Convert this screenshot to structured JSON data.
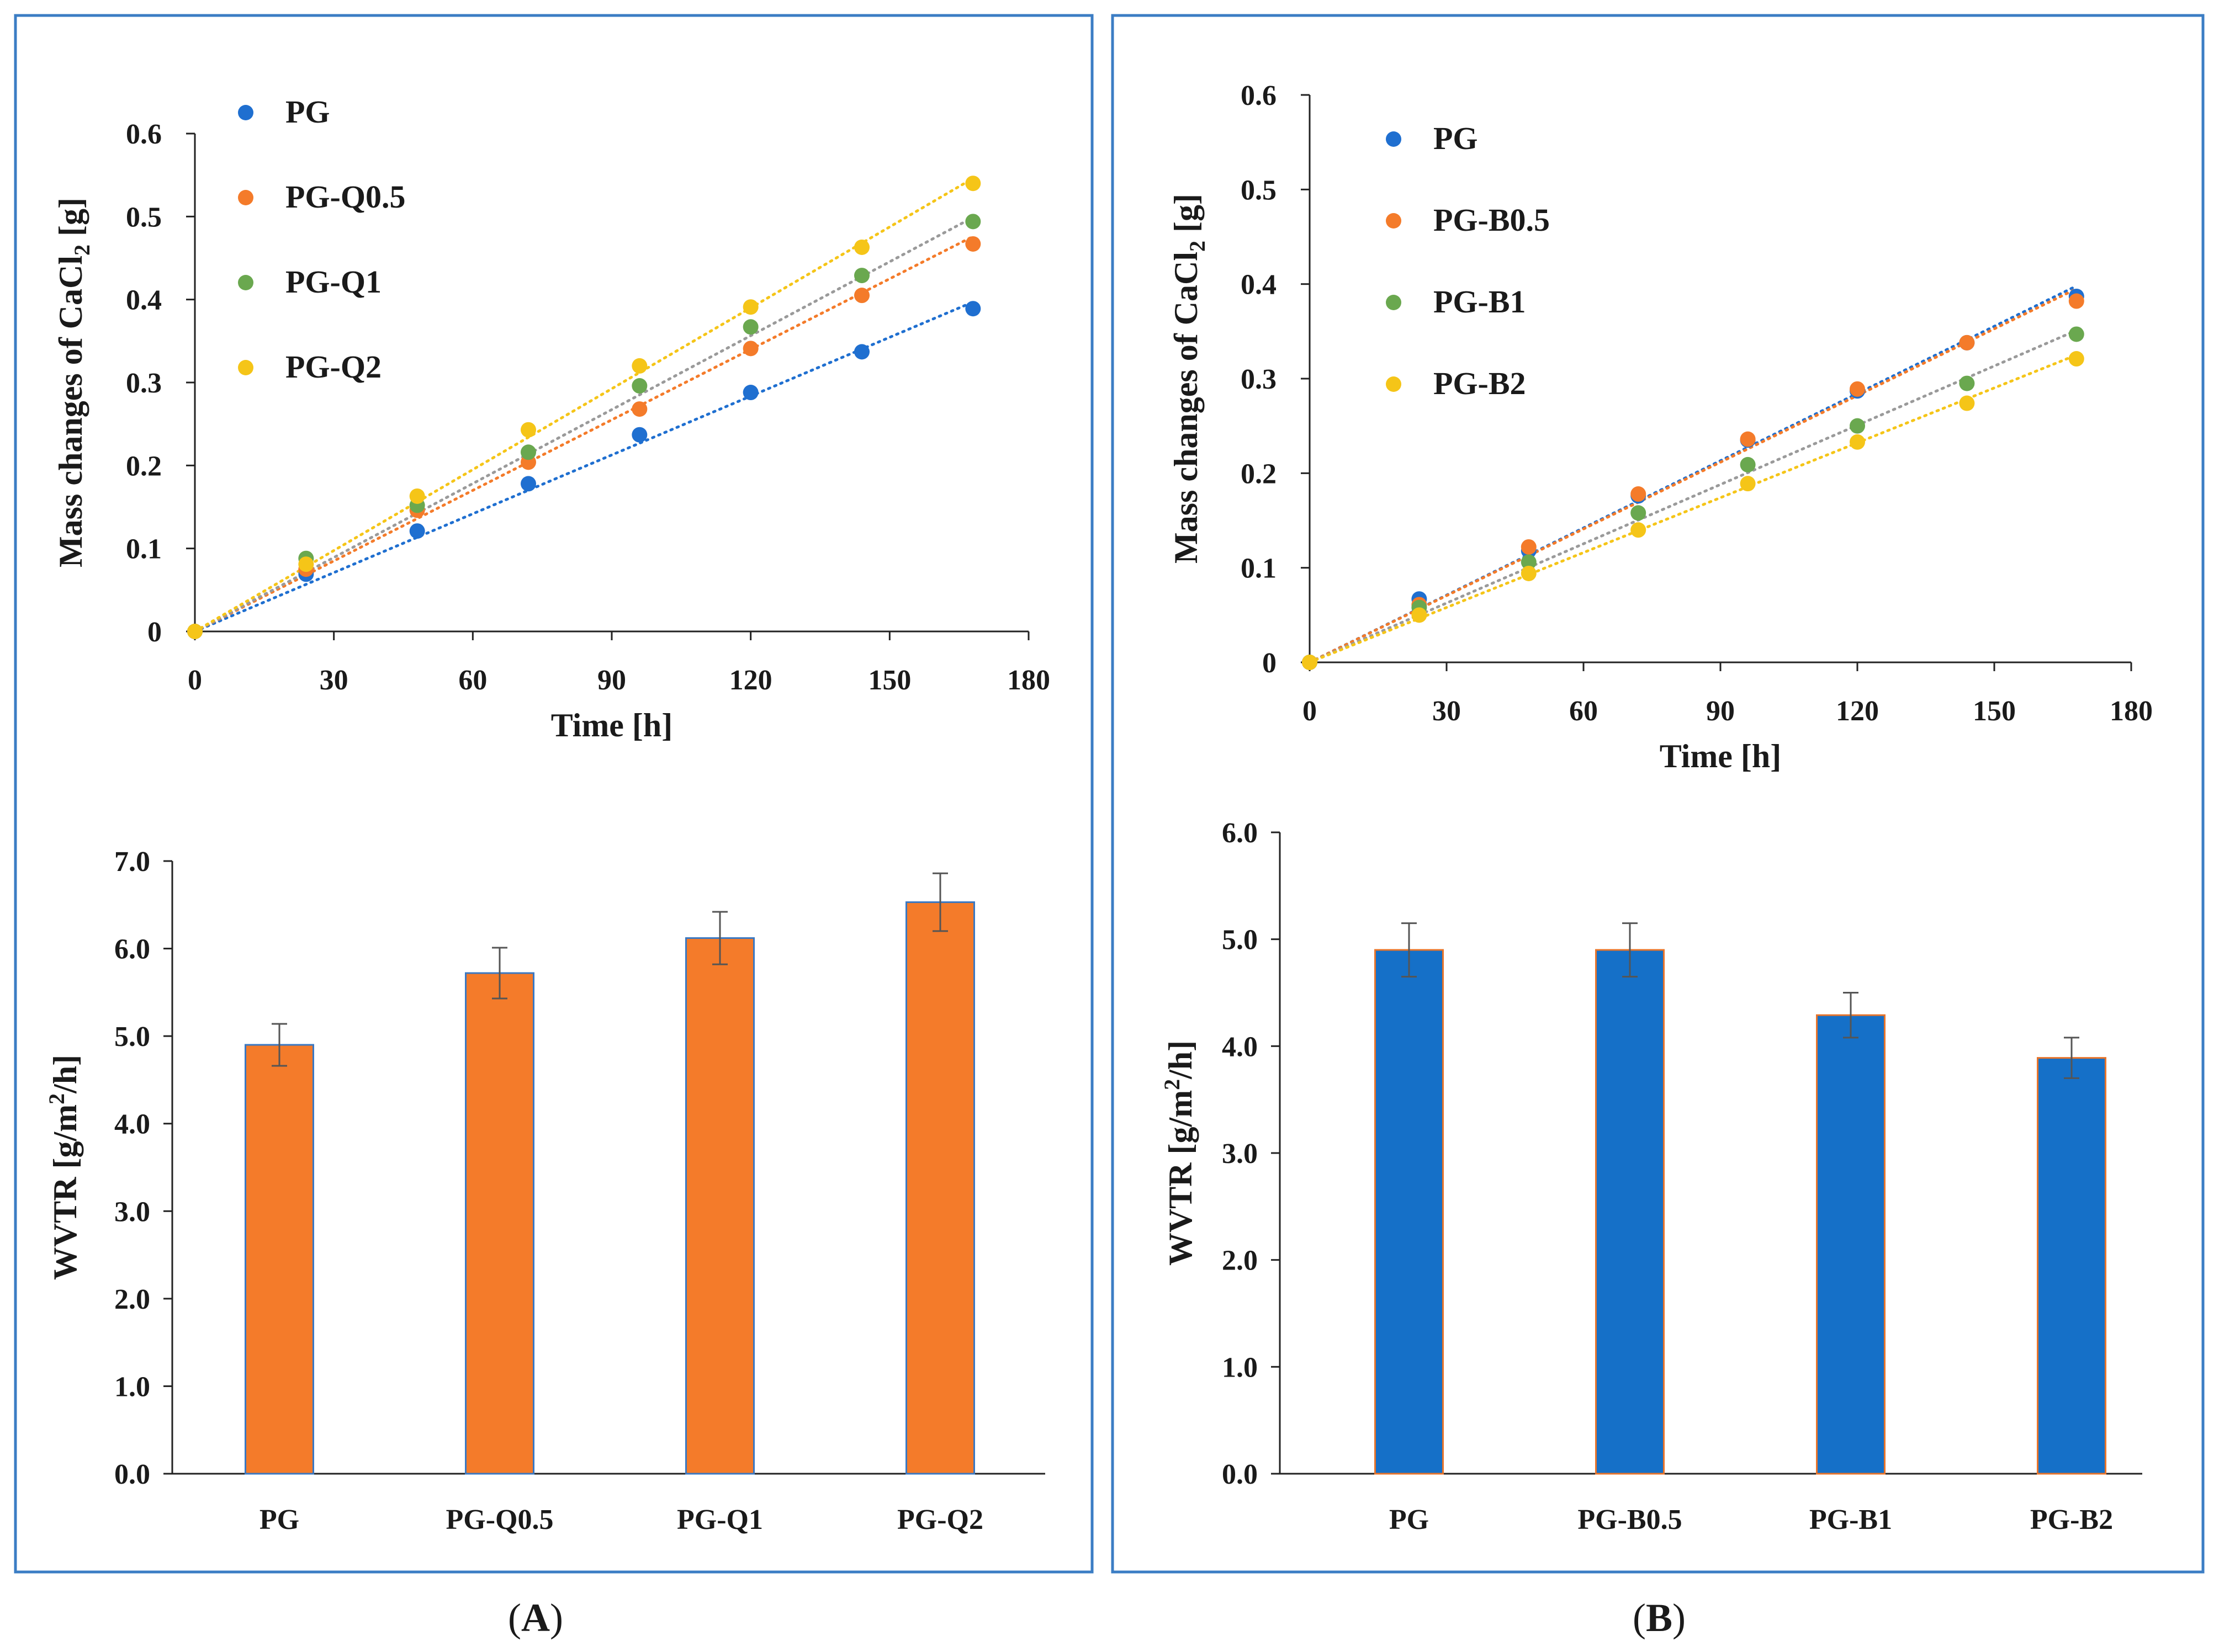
{
  "panels": [
    {
      "label": "A"
    },
    {
      "label": "B"
    }
  ],
  "chart_data": [
    {
      "id": "A-line",
      "type": "scatter",
      "panel": "A",
      "title": "",
      "xlabel": "Time [h]",
      "ylabel": "Mass changes of CaCl₂ [g]",
      "ylabel_main": "Mass changes of CaCl",
      "ylabel_sub": "2",
      "ylabel_tail": " [g]",
      "xlim": [
        0,
        180
      ],
      "ylim": [
        0,
        0.6
      ],
      "xticks": [
        "0",
        "30",
        "60",
        "90",
        "120",
        "150",
        "180"
      ],
      "yticks": [
        "0",
        "0.1",
        "0.2",
        "0.3",
        "0.4",
        "0.5",
        "0.6"
      ],
      "trendline": "linear, dotted",
      "legend_position": "top-left",
      "x": [
        0,
        24,
        48,
        72,
        96,
        120,
        144,
        168
      ],
      "series": [
        {
          "name": "PG",
          "color": "#1f6fd0",
          "values": [
            0,
            0.069,
            0.121,
            0.178,
            0.237,
            0.288,
            0.337,
            0.389
          ],
          "fit_end": 0.397
        },
        {
          "name": "PG-Q0.5",
          "color": "#f47b2a",
          "values": [
            0,
            0.075,
            0.146,
            0.204,
            0.268,
            0.341,
            0.405,
            0.467
          ],
          "fit_end": 0.476
        },
        {
          "name": "PG-Q1",
          "color": "#6aa84f",
          "values": [
            0,
            0.088,
            0.152,
            0.216,
            0.296,
            0.367,
            0.429,
            0.494
          ],
          "fit_end": 0.499
        },
        {
          "name": "PG-Q2",
          "color": "#f5c518",
          "values": [
            0,
            0.081,
            0.163,
            0.243,
            0.32,
            0.391,
            0.463,
            0.54
          ],
          "fit_end": 0.546
        }
      ]
    },
    {
      "id": "A-bar",
      "type": "bar",
      "panel": "A",
      "title": "",
      "xlabel": "",
      "ylabel": "WVTR [g/m²/h]",
      "ylabel_main": "WVTR [g/m",
      "ylabel_sup": "2",
      "ylabel_tail": "/h]",
      "ylim": [
        0,
        7
      ],
      "yticks": [
        "0.0",
        "1.0",
        "2.0",
        "3.0",
        "4.0",
        "5.0",
        "6.0",
        "7.0"
      ],
      "bar_color": "#f47b2a",
      "bar_edge": "#3a78c2",
      "categories": [
        "PG",
        "PG-Q0.5",
        "PG-Q1",
        "PG-Q2"
      ],
      "values": [
        4.9,
        5.72,
        6.12,
        6.53
      ],
      "errors": [
        0.24,
        0.29,
        0.3,
        0.33
      ]
    },
    {
      "id": "B-line",
      "type": "scatter",
      "panel": "B",
      "title": "",
      "xlabel": "Time [h]",
      "ylabel": "Mass changes of CaCl₂ [g]",
      "ylabel_main": "Mass changes of CaCl",
      "ylabel_sub": "2",
      "ylabel_tail": " [g]",
      "xlim": [
        0,
        180
      ],
      "ylim": [
        0,
        0.6
      ],
      "xticks": [
        "0",
        "30",
        "60",
        "90",
        "120",
        "150",
        "180"
      ],
      "yticks": [
        "0",
        "0.1",
        "0.2",
        "0.3",
        "0.4",
        "0.5",
        "0.6"
      ],
      "trendline": "linear, dotted",
      "legend_position": "top-left",
      "x": [
        0,
        24,
        48,
        72,
        96,
        120,
        144,
        168
      ],
      "series": [
        {
          "name": "PG",
          "color": "#1f6fd0",
          "values": [
            0,
            0.067,
            0.118,
            0.176,
            0.235,
            0.287,
            0.338,
            0.387
          ],
          "fit_end": 0.398
        },
        {
          "name": "PG-B0.5",
          "color": "#f47b2a",
          "values": [
            0,
            0.061,
            0.122,
            0.178,
            0.236,
            0.289,
            0.338,
            0.382
          ],
          "fit_end": 0.395
        },
        {
          "name": "PG-B1",
          "color": "#6aa84f",
          "values": [
            0,
            0.058,
            0.106,
            0.158,
            0.209,
            0.25,
            0.295,
            0.347
          ],
          "fit_end": 0.351
        },
        {
          "name": "PG-B2",
          "color": "#f5c518",
          "values": [
            0,
            0.05,
            0.094,
            0.14,
            0.189,
            0.233,
            0.274,
            0.321
          ],
          "fit_end": 0.325
        }
      ]
    },
    {
      "id": "B-bar",
      "type": "bar",
      "panel": "B",
      "title": "",
      "xlabel": "",
      "ylabel": "WVTR [g/m²/h]",
      "ylabel_main": "WVTR [g/m",
      "ylabel_sup": "2",
      "ylabel_tail": "/h]",
      "ylim": [
        0,
        6
      ],
      "yticks": [
        "0.0",
        "1.0",
        "2.0",
        "3.0",
        "4.0",
        "5.0",
        "6.0"
      ],
      "bar_color": "#1570c8",
      "bar_edge": "#e8742a",
      "categories": [
        "PG",
        "PG-B0.5",
        "PG-B1",
        "PG-B2"
      ],
      "values": [
        4.9,
        4.9,
        4.29,
        3.89
      ],
      "errors": [
        0.25,
        0.25,
        0.21,
        0.19
      ]
    }
  ]
}
